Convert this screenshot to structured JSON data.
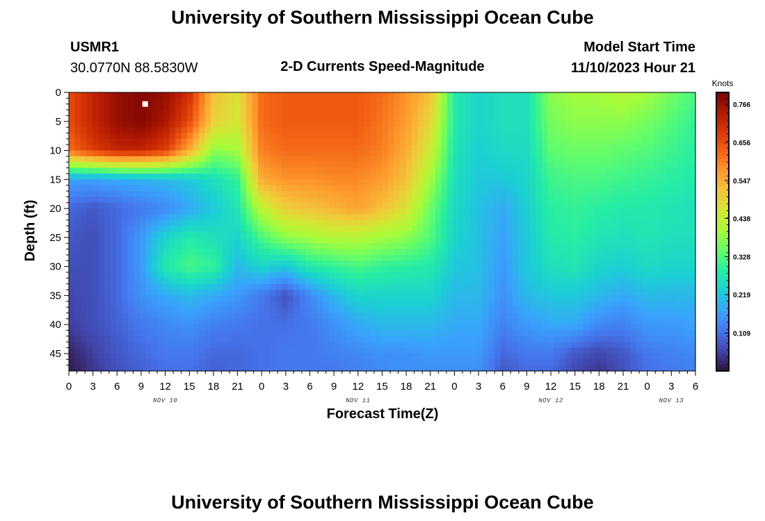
{
  "header": {
    "title": "University of Southern Mississippi Ocean Cube",
    "station_id": "USMR1",
    "station_coords": "30.0770N  88.5830W",
    "plot_title": "2-D Currents Speed-Magnitude",
    "model_start_label": "Model Start Time",
    "model_start_value": "11/10/2023 Hour 21"
  },
  "footer": {
    "title": "University of Southern Mississippi Ocean Cube"
  },
  "chart_data": {
    "type": "heatmap",
    "xlabel": "Forecast Time(Z)",
    "ylabel": "Depth (ft)",
    "x_tick_labels": [
      "0",
      "3",
      "6",
      "9",
      "12",
      "15",
      "18",
      "21",
      "0",
      "3",
      "6",
      "9",
      "12",
      "15",
      "18",
      "21",
      "0",
      "3",
      "6",
      "9",
      "12",
      "15",
      "18",
      "21",
      "0",
      "3",
      "6"
    ],
    "day_labels": [
      {
        "text": "NOV 10",
        "at_hour": 12
      },
      {
        "text": "NOV 11",
        "at_hour": 36
      },
      {
        "text": "NOV 12",
        "at_hour": 60
      },
      {
        "text": "NOV 13",
        "at_hour": 75
      }
    ],
    "x_range_hours": [
      0,
      78
    ],
    "y_tick_labels": [
      "0",
      "5",
      "10",
      "15",
      "20",
      "25",
      "30",
      "35",
      "40",
      "45"
    ],
    "y_range_ft": [
      0,
      48
    ],
    "colorbar": {
      "units": "Knots",
      "min": 0.0,
      "max": 0.8,
      "tick_labels": [
        "0.766",
        "0.656",
        "0.547",
        "0.438",
        "0.328",
        "0.219",
        "0.109"
      ],
      "colors": [
        "#30123b",
        "#4145ab",
        "#4675ed",
        "#39a2fc",
        "#1bcfd4",
        "#24eca6",
        "#61fc6c",
        "#a4fc3b",
        "#d1e834",
        "#f3c63a",
        "#fe9b2d",
        "#f36315",
        "#d93806",
        "#b11901",
        "#7a0402"
      ]
    },
    "marker": {
      "hour": 9.5,
      "depth_ft": 2
    },
    "speed_grid": {
      "hours": [
        0,
        3,
        6,
        9,
        12,
        15,
        18,
        21,
        24,
        27,
        30,
        33,
        36,
        39,
        42,
        45,
        48,
        51,
        54,
        57,
        60,
        63,
        66,
        69,
        72,
        75,
        78
      ],
      "depths": [
        0,
        5,
        10,
        15,
        20,
        25,
        30,
        35,
        40,
        45,
        48
      ],
      "values": [
        [
          0.66,
          0.72,
          0.77,
          0.79,
          0.77,
          0.7,
          0.52,
          0.47,
          0.62,
          0.64,
          0.64,
          0.64,
          0.64,
          0.62,
          0.58,
          0.52,
          0.28,
          0.24,
          0.26,
          0.26,
          0.38,
          0.4,
          0.4,
          0.42,
          0.4,
          0.36,
          0.32
        ],
        [
          0.66,
          0.72,
          0.77,
          0.79,
          0.75,
          0.66,
          0.5,
          0.46,
          0.62,
          0.64,
          0.64,
          0.64,
          0.64,
          0.61,
          0.57,
          0.49,
          0.28,
          0.24,
          0.26,
          0.26,
          0.36,
          0.38,
          0.38,
          0.38,
          0.36,
          0.33,
          0.3
        ],
        [
          0.62,
          0.68,
          0.72,
          0.72,
          0.68,
          0.55,
          0.38,
          0.4,
          0.6,
          0.62,
          0.62,
          0.62,
          0.62,
          0.6,
          0.55,
          0.45,
          0.27,
          0.23,
          0.25,
          0.25,
          0.34,
          0.35,
          0.35,
          0.34,
          0.33,
          0.31,
          0.29
        ],
        [
          0.17,
          0.17,
          0.18,
          0.19,
          0.2,
          0.22,
          0.26,
          0.3,
          0.55,
          0.58,
          0.58,
          0.59,
          0.59,
          0.57,
          0.52,
          0.4,
          0.26,
          0.22,
          0.22,
          0.24,
          0.31,
          0.32,
          0.32,
          0.31,
          0.3,
          0.29,
          0.28
        ],
        [
          0.1,
          0.08,
          0.1,
          0.12,
          0.14,
          0.18,
          0.22,
          0.27,
          0.43,
          0.5,
          0.52,
          0.54,
          0.56,
          0.52,
          0.47,
          0.35,
          0.25,
          0.21,
          0.18,
          0.23,
          0.29,
          0.3,
          0.29,
          0.28,
          0.28,
          0.27,
          0.26
        ],
        [
          0.08,
          0.07,
          0.1,
          0.16,
          0.24,
          0.28,
          0.26,
          0.24,
          0.32,
          0.38,
          0.4,
          0.42,
          0.42,
          0.4,
          0.38,
          0.33,
          0.24,
          0.21,
          0.17,
          0.22,
          0.28,
          0.29,
          0.27,
          0.26,
          0.27,
          0.26,
          0.26
        ],
        [
          0.07,
          0.07,
          0.1,
          0.16,
          0.28,
          0.32,
          0.3,
          0.2,
          0.24,
          0.22,
          0.28,
          0.3,
          0.32,
          0.3,
          0.29,
          0.28,
          0.22,
          0.21,
          0.16,
          0.22,
          0.26,
          0.27,
          0.24,
          0.23,
          0.25,
          0.24,
          0.24
        ],
        [
          0.06,
          0.07,
          0.1,
          0.15,
          0.18,
          0.2,
          0.18,
          0.16,
          0.12,
          0.07,
          0.14,
          0.2,
          0.24,
          0.24,
          0.24,
          0.24,
          0.2,
          0.2,
          0.15,
          0.2,
          0.22,
          0.22,
          0.2,
          0.18,
          0.2,
          0.2,
          0.2
        ],
        [
          0.05,
          0.07,
          0.09,
          0.12,
          0.14,
          0.15,
          0.13,
          0.12,
          0.11,
          0.11,
          0.12,
          0.15,
          0.18,
          0.2,
          0.2,
          0.2,
          0.18,
          0.18,
          0.13,
          0.16,
          0.18,
          0.18,
          0.14,
          0.13,
          0.16,
          0.16,
          0.17
        ],
        [
          0.02,
          0.05,
          0.08,
          0.1,
          0.12,
          0.12,
          0.1,
          0.1,
          0.11,
          0.12,
          0.12,
          0.13,
          0.14,
          0.15,
          0.15,
          0.16,
          0.16,
          0.16,
          0.1,
          0.12,
          0.12,
          0.08,
          0.06,
          0.08,
          0.12,
          0.13,
          0.14
        ],
        [
          0.01,
          0.04,
          0.07,
          0.09,
          0.11,
          0.11,
          0.09,
          0.1,
          0.11,
          0.12,
          0.12,
          0.12,
          0.13,
          0.14,
          0.15,
          0.15,
          0.15,
          0.15,
          0.08,
          0.1,
          0.1,
          0.06,
          0.04,
          0.07,
          0.11,
          0.12,
          0.13
        ]
      ]
    }
  }
}
